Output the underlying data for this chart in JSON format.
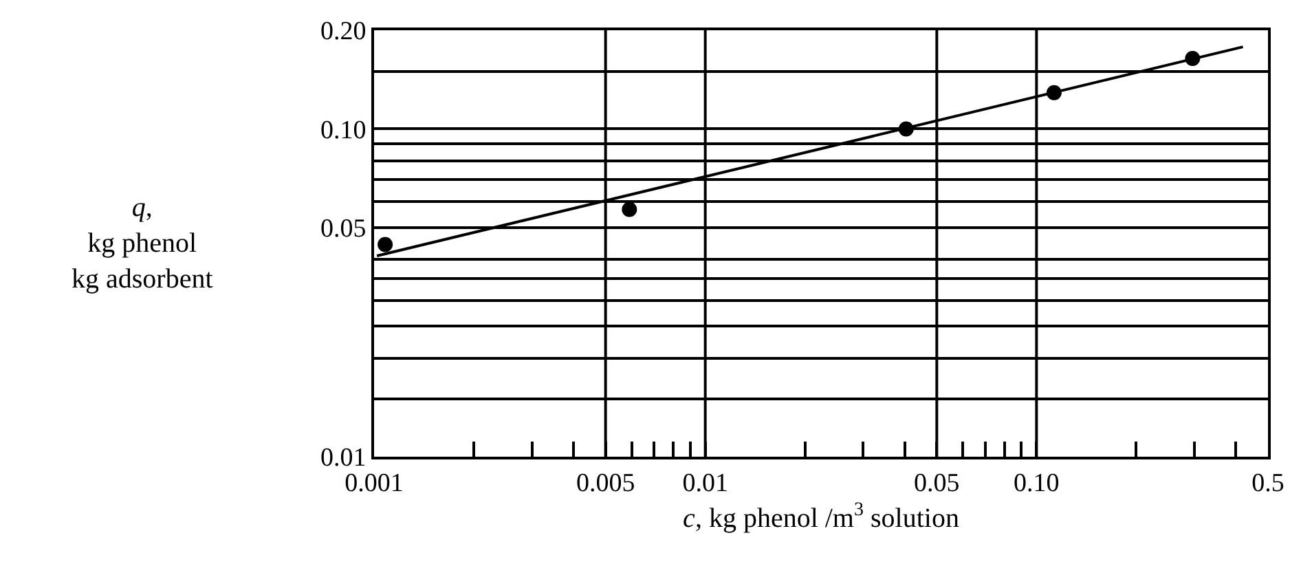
{
  "chart_data": {
    "type": "scatter",
    "xlabel": "c, kg phenol /m$^{3}$ solution",
    "ylabel": "q,\nkg phenol\nkg adsorbent",
    "log": "xy",
    "xlim": [
      0.001,
      0.5
    ],
    "ylim": [
      0.01,
      0.2
    ],
    "xticks": [
      0.001,
      {
        "value": 0.002,
        "label": null
      },
      {
        "value": 0.003,
        "label": null
      },
      {
        "value": 0.004,
        "label": null
      },
      0.005,
      {
        "value": 0.006,
        "label": null
      },
      {
        "value": 0.007,
        "label": null
      },
      {
        "value": 0.008,
        "label": null
      },
      {
        "value": 0.009,
        "label": null
      },
      0.01,
      {
        "value": 0.02,
        "label": null
      },
      {
        "value": 0.03,
        "label": null
      },
      {
        "value": 0.04,
        "label": null
      },
      0.05,
      {
        "value": 0.06,
        "label": null
      },
      {
        "value": 0.07,
        "label": null
      },
      {
        "value": 0.08,
        "label": null
      },
      {
        "value": 0.09,
        "label": null
      },
      {
        "value": 0.1,
        "label": "0.10"
      },
      {
        "value": 0.2,
        "label": null
      },
      {
        "value": 0.3,
        "label": null
      },
      {
        "value": 0.4,
        "label": null
      },
      0.5
    ],
    "yticks": [
      0.01,
      {
        "value": 0.015,
        "label": null
      },
      {
        "value": 0.02,
        "label": null
      },
      {
        "value": 0.025,
        "label": null
      },
      {
        "value": 0.03,
        "label": null
      },
      {
        "value": 0.035,
        "label": null
      },
      {
        "value": 0.04,
        "label": null
      },
      0.05,
      {
        "value": 0.06,
        "label": null
      },
      {
        "value": 0.07,
        "label": null
      },
      {
        "value": 0.08,
        "label": null
      },
      {
        "value": 0.09,
        "label": null
      },
      {
        "value": 0.1,
        "label": "0.10"
      },
      {
        "value": 0.15,
        "label": null
      },
      {
        "value": 0.2,
        "label": "0.20"
      }
    ],
    "grid": "y",
    "ref_lines": [
      {
        "axis": "x",
        "value": 0.005
      },
      {
        "axis": "x",
        "value": 0.01
      },
      {
        "axis": "x",
        "value": 0.05
      },
      {
        "axis": "x",
        "value": 0.1
      }
    ],
    "series": [
      {
        "color": "#000000",
        "marker": "circle",
        "x": [
          0.00108,
          0.0059,
          0.0404,
          0.113,
          0.296
        ],
        "values": [
          0.0444,
          0.0568,
          0.1,
          0.129,
          0.164
        ]
      },
      {
        "type": "line",
        "color": "#000000",
        "marker": "none",
        "line_style": "solid",
        "x": [
          0.00102,
          0.42
        ],
        "values": [
          0.041,
          0.178
        ]
      }
    ]
  }
}
